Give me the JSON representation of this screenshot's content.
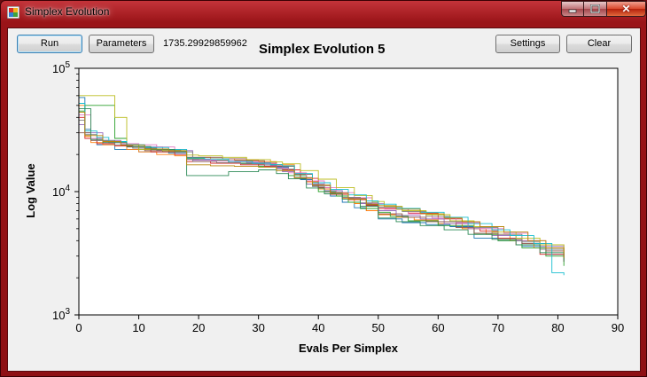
{
  "window": {
    "title": "Simplex Evolution",
    "close_glyph": "✕"
  },
  "toolbar": {
    "run_label": "Run",
    "parameters_label": "Parameters",
    "best_value": "1735.29929859962",
    "settings_label": "Settings",
    "clear_label": "Clear"
  },
  "chart_data": {
    "type": "line",
    "title": "Simplex Evolution 5",
    "xlabel": "Evals Per Simplex",
    "ylabel": "Log Value",
    "xlim": [
      0,
      90
    ],
    "ylim": [
      1000,
      100000
    ],
    "yscale": "log",
    "xticks": [
      "0",
      "10",
      "20",
      "30",
      "40",
      "50",
      "60",
      "70",
      "80",
      "90"
    ],
    "yticks": [
      {
        "base": "10",
        "exp": "3"
      },
      {
        "base": "10",
        "exp": "4"
      },
      {
        "base": "10",
        "exp": "5"
      }
    ],
    "grid": false,
    "series": [
      {
        "color": "#1f77b4",
        "x": [
          0,
          1,
          2,
          3,
          5,
          6,
          8,
          10,
          12,
          15,
          17,
          18,
          20,
          25,
          30,
          33,
          35,
          37,
          39,
          40,
          42,
          44,
          46,
          48,
          50,
          54,
          58,
          62,
          66,
          70,
          74,
          78,
          81
        ],
        "y": [
          58000,
          32000,
          27000,
          24000,
          24000,
          22000,
          22000,
          21000,
          21000,
          20500,
          20500,
          18500,
          18000,
          17000,
          16500,
          15800,
          15000,
          12500,
          11000,
          10500,
          9200,
          8200,
          7400,
          7000,
          6000,
          5600,
          5400,
          5200,
          4200,
          4000,
          3600,
          3100,
          2900
        ]
      },
      {
        "color": "#ff7f0e",
        "x": [
          0,
          1,
          2,
          4,
          6,
          8,
          10,
          13,
          16,
          18,
          22,
          26,
          30,
          33,
          36,
          38,
          40,
          42,
          44,
          46,
          48,
          50,
          53,
          56,
          60,
          64,
          68,
          72,
          76,
          81
        ],
        "y": [
          50000,
          28000,
          25000,
          24000,
          23500,
          22000,
          21000,
          20000,
          19500,
          19000,
          18500,
          18000,
          17500,
          16500,
          14000,
          12000,
          10500,
          9500,
          8800,
          8000,
          7000,
          6500,
          6200,
          5900,
          5500,
          5000,
          4500,
          4000,
          3500,
          3100
        ]
      },
      {
        "color": "#2ca02c",
        "x": [
          0,
          1,
          5,
          6,
          8,
          10,
          14,
          18,
          21,
          25,
          30,
          33,
          35,
          38,
          40,
          43,
          45,
          47,
          50,
          52,
          55,
          60,
          66,
          70,
          74,
          78,
          81
        ],
        "y": [
          45000,
          50000,
          50000,
          27000,
          24000,
          22000,
          21000,
          18500,
          18000,
          17000,
          16000,
          15500,
          13500,
          11500,
          10000,
          9200,
          8200,
          7300,
          6800,
          6300,
          5800,
          5300,
          4500,
          4000,
          3500,
          3000,
          2500
        ]
      },
      {
        "color": "#d62728",
        "x": [
          0,
          1,
          3,
          6,
          9,
          12,
          16,
          18,
          22,
          27,
          31,
          34,
          37,
          40,
          42,
          45,
          48,
          50,
          55,
          60,
          64,
          67,
          70,
          73,
          77,
          81
        ],
        "y": [
          40000,
          27000,
          24500,
          23500,
          22500,
          21000,
          20000,
          17500,
          17000,
          16500,
          16000,
          15000,
          12800,
          10800,
          9500,
          8600,
          7700,
          7300,
          6700,
          6000,
          5600,
          4800,
          4200,
          3700,
          3100,
          2700
        ]
      },
      {
        "color": "#9467bd",
        "x": [
          0,
          1,
          4,
          7,
          10,
          14,
          17,
          19,
          23,
          28,
          32,
          34,
          36,
          38,
          41,
          44,
          47,
          50,
          53,
          57,
          61,
          65,
          69,
          73,
          77,
          81
        ],
        "y": [
          35000,
          30000,
          26000,
          24000,
          23000,
          22000,
          21500,
          18000,
          17800,
          17200,
          16200,
          14500,
          13000,
          11500,
          10200,
          9000,
          8000,
          7000,
          6400,
          6000,
          5500,
          5000,
          4400,
          4000,
          3600,
          3300
        ]
      },
      {
        "color": "#8c564b",
        "x": [
          0,
          2,
          5,
          8,
          11,
          15,
          18,
          20,
          24,
          28,
          31,
          33,
          36,
          39,
          42,
          45,
          48,
          50,
          54,
          58,
          63,
          66,
          70,
          74,
          78,
          81
        ],
        "y": [
          30000,
          26000,
          25000,
          23000,
          21500,
          21000,
          19000,
          19000,
          18500,
          17800,
          17000,
          16000,
          13800,
          11200,
          9800,
          8800,
          7800,
          6600,
          6200,
          5700,
          5100,
          4600,
          4100,
          3800,
          3300,
          3000
        ]
      },
      {
        "color": "#e377c2",
        "x": [
          0,
          2,
          4,
          7,
          10,
          13,
          16,
          18,
          22,
          26,
          30,
          33,
          35,
          38,
          41,
          43,
          46,
          49,
          51,
          55,
          59,
          63,
          67,
          71,
          75,
          78,
          81
        ],
        "y": [
          42000,
          27000,
          25000,
          24500,
          24000,
          23000,
          22000,
          18200,
          17800,
          17500,
          16800,
          15500,
          14200,
          12200,
          10800,
          9800,
          8900,
          8000,
          7200,
          6600,
          6100,
          5600,
          5000,
          4600,
          4000,
          3700,
          3600
        ]
      },
      {
        "color": "#7f7f7f",
        "x": [
          0,
          1,
          3,
          6,
          9,
          13,
          17,
          19,
          23,
          27,
          31,
          33,
          36,
          39,
          41,
          44,
          47,
          50,
          54,
          58,
          62,
          66,
          70,
          74,
          77,
          81
        ],
        "y": [
          38000,
          29000,
          26000,
          24000,
          22500,
          21800,
          21000,
          17600,
          17200,
          16800,
          16400,
          15200,
          13000,
          11000,
          9900,
          9000,
          8100,
          7500,
          6900,
          6300,
          5700,
          5100,
          4500,
          3900,
          3400,
          2800
        ]
      },
      {
        "color": "#bcbd22",
        "x": [
          0,
          1,
          6,
          8,
          10,
          14,
          18,
          20,
          24,
          28,
          32,
          34,
          37,
          40,
          43,
          46,
          49,
          51,
          54,
          58,
          62,
          66,
          69,
          73,
          77,
          81
        ],
        "y": [
          60000,
          60000,
          40000,
          24000,
          22000,
          21500,
          19800,
          19500,
          19000,
          18200,
          17400,
          16800,
          14800,
          12600,
          10800,
          9300,
          8300,
          7600,
          7000,
          6500,
          5800,
          5200,
          4700,
          4200,
          3700,
          3200
        ]
      },
      {
        "color": "#17becf",
        "x": [
          0,
          1,
          3,
          5,
          8,
          11,
          15,
          18,
          21,
          25,
          29,
          32,
          34,
          36,
          39,
          42,
          45,
          48,
          50,
          53,
          57,
          61,
          65,
          69,
          72,
          76,
          79,
          81
        ],
        "y": [
          52000,
          31000,
          27500,
          25500,
          24000,
          22800,
          22000,
          18800,
          18400,
          17600,
          17000,
          16600,
          16200,
          14000,
          11800,
          10400,
          9400,
          8400,
          7900,
          7300,
          6800,
          6200,
          5500,
          4900,
          4400,
          3800,
          2200,
          2100
        ]
      },
      {
        "color": "#2e8b57",
        "x": [
          0,
          2,
          4,
          8,
          12,
          16,
          18,
          21,
          25,
          30,
          33,
          35,
          38,
          41,
          44,
          47,
          50,
          53,
          57,
          61,
          65,
          69,
          73,
          77,
          81
        ],
        "y": [
          47000,
          26500,
          25000,
          23200,
          22000,
          21200,
          13500,
          13500,
          14500,
          15000,
          14000,
          12700,
          10700,
          9600,
          8700,
          7600,
          6100,
          5700,
          5300,
          4900,
          4500,
          4100,
          3700,
          3200,
          2700
        ]
      },
      {
        "color": "#b8860b",
        "x": [
          0,
          1,
          4,
          7,
          11,
          15,
          18,
          22,
          26,
          30,
          33,
          36,
          39,
          42,
          45,
          48,
          50,
          53,
          57,
          61,
          64,
          67,
          71,
          75,
          78,
          81
        ],
        "y": [
          44000,
          28500,
          25500,
          23800,
          22200,
          21400,
          16500,
          16200,
          16000,
          15800,
          14800,
          12900,
          11300,
          9700,
          8700,
          7900,
          7700,
          7200,
          6600,
          6100,
          5700,
          5200,
          4700,
          4000,
          3500,
          2900
        ]
      }
    ]
  }
}
